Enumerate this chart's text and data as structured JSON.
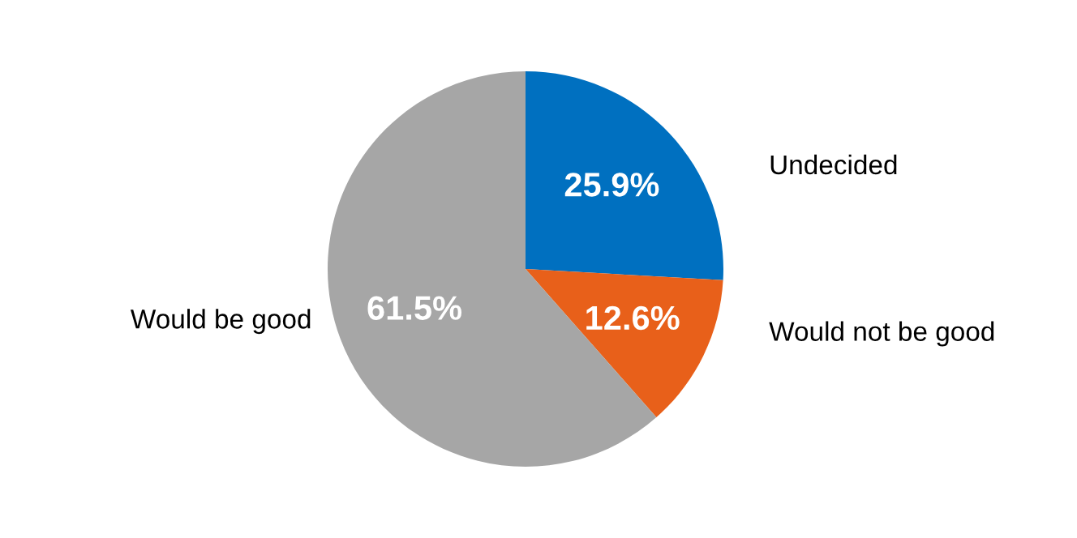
{
  "chart_data": {
    "type": "pie",
    "categories": [
      "Undecided",
      "Would not be good",
      "Would be good"
    ],
    "values": [
      25.9,
      12.6,
      61.5
    ],
    "colors": [
      "#0070c0",
      "#e8601a",
      "#a6a6a6"
    ],
    "value_labels": [
      "25.9%",
      "12.6%",
      "61.5%"
    ]
  }
}
